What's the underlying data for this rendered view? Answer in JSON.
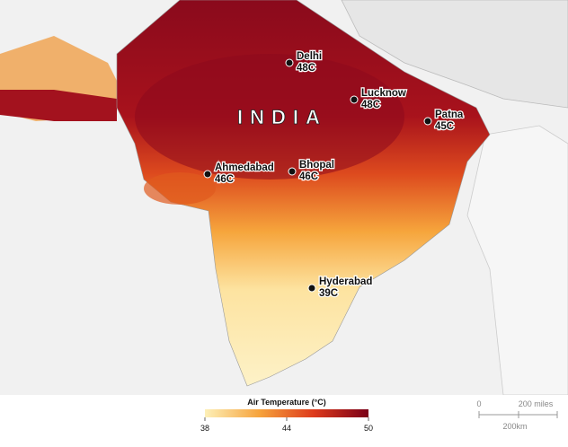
{
  "map": {
    "country": "INDIA",
    "cities": [
      {
        "name": "Delhi",
        "temp": "48C"
      },
      {
        "name": "Lucknow",
        "temp": "48C"
      },
      {
        "name": "Patna",
        "temp": "45C"
      },
      {
        "name": "Ahmedabad",
        "temp": "46C"
      },
      {
        "name": "Bhopal",
        "temp": "46C"
      },
      {
        "name": "Hyderabad",
        "temp": "39C"
      }
    ],
    "legend": {
      "title": "Air Temperature (°C)",
      "ticks": [
        38,
        44,
        50
      ],
      "colors": [
        "#fdf0b8",
        "#f6a33c",
        "#dd3a1c",
        "#7a0018"
      ]
    },
    "scale_bar": {
      "zero": "0",
      "miles": "200 miles",
      "km": "200km"
    }
  }
}
